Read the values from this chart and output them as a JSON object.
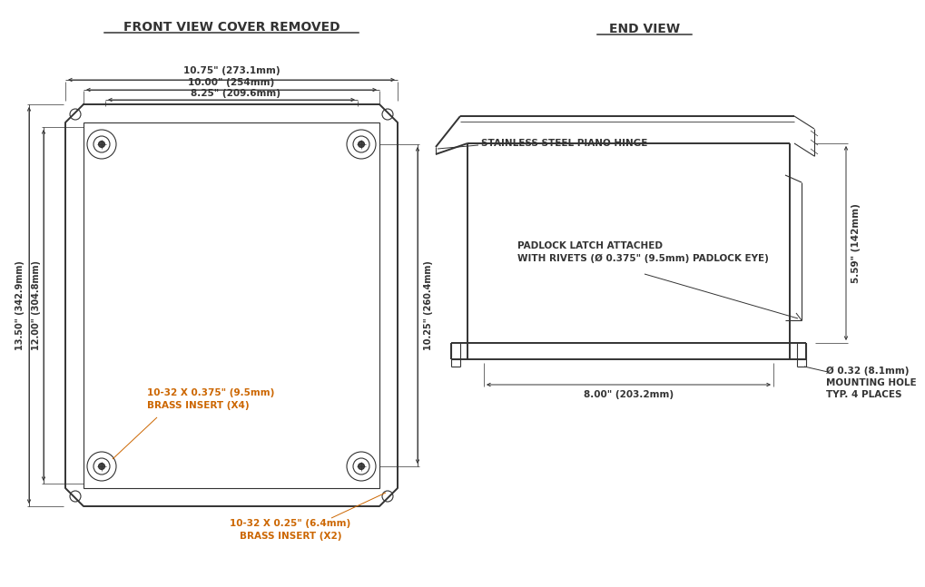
{
  "bg_color": "#ffffff",
  "line_color": "#333333",
  "text_color": "#333333",
  "orange_color": "#cc6600",
  "title_front": "FRONT VIEW COVER REMOVED",
  "title_end": "END VIEW",
  "dim_1075": "10.75\" (273.1mm)",
  "dim_1000": "10.00\" (254mm)",
  "dim_825": "8.25\" (209.6mm)",
  "dim_1350h": "13.50\" (342.9mm)",
  "dim_1200h": "12.00\" (304.8mm)",
  "dim_1025h": "10.25\" (260.4mm)",
  "dim_800w": "8.00\" (203.2mm)",
  "dim_559h": "5.59\" (142mm)",
  "label_brass_x4": "10-32 X 0.375\" (9.5mm)\nBRASS INSERT (X4)",
  "label_brass_x2": "10-32 X 0.25\" (6.4mm)\nBRASS INSERT (X2)",
  "label_hinge": "STAINLESS STEEL PIANO HINGE",
  "label_padlock": "PADLOCK LATCH ATTACHED\nWITH RIVETS (Ø 0.375\" (9.5mm) PADLOCK EYE)",
  "label_mounting": "Ø 0.32 (8.1mm)\nMOUNTING HOLE\nTYP. 4 PLACES"
}
